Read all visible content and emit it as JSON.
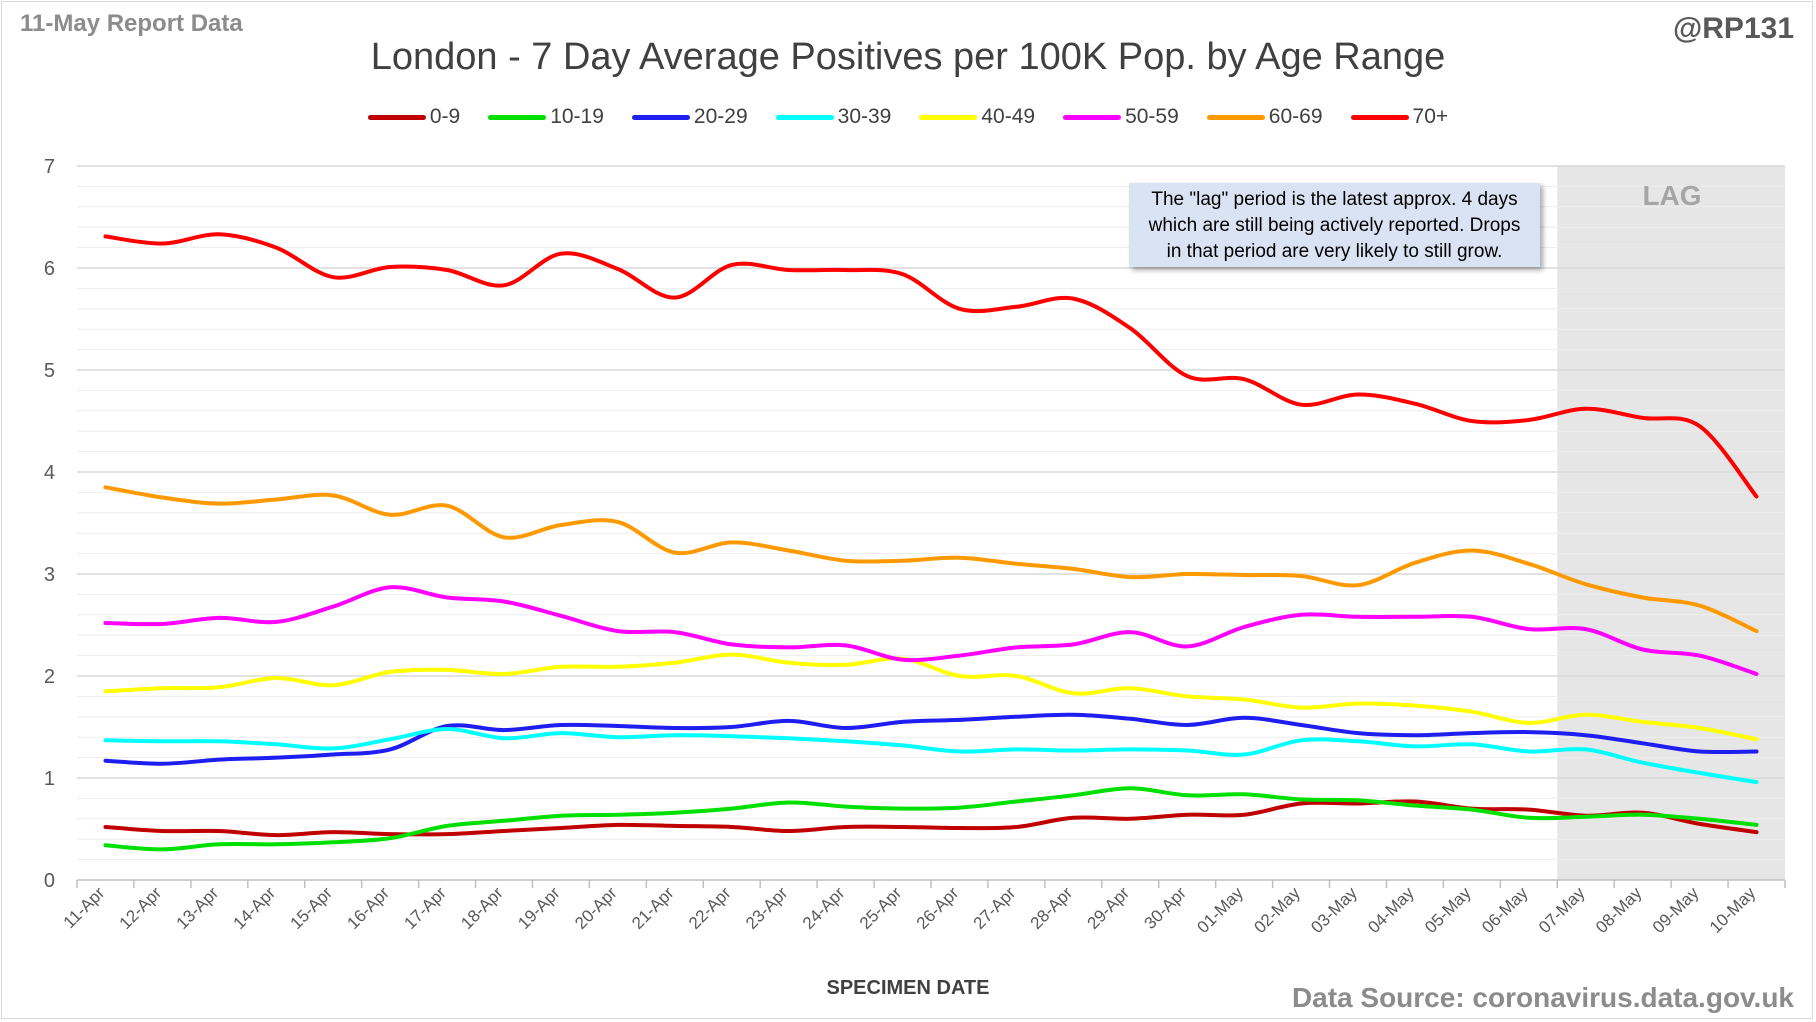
{
  "header": {
    "report_date": "11-May Report Data",
    "handle": "@RP131",
    "source": "Data Source: coronavirus.data.gov.uk"
  },
  "chart_data": {
    "type": "line",
    "title": "London - 7 Day Average Positives per 100K Pop. by Age Range",
    "xlabel": "SPECIMEN DATE",
    "ylabel": "",
    "ylim": [
      0,
      7
    ],
    "yticks": [
      0,
      1,
      2,
      3,
      4,
      5,
      6,
      7
    ],
    "grid": true,
    "legend": "top",
    "categories": [
      "11-Apr",
      "12-Apr",
      "13-Apr",
      "14-Apr",
      "15-Apr",
      "16-Apr",
      "17-Apr",
      "18-Apr",
      "19-Apr",
      "20-Apr",
      "21-Apr",
      "22-Apr",
      "23-Apr",
      "24-Apr",
      "25-Apr",
      "26-Apr",
      "27-Apr",
      "28-Apr",
      "29-Apr",
      "30-Apr",
      "01-May",
      "02-May",
      "03-May",
      "04-May",
      "05-May",
      "06-May",
      "07-May",
      "08-May",
      "09-May",
      "10-May"
    ],
    "series": [
      {
        "name": "0-9",
        "color": "#c00000",
        "values": [
          0.52,
          0.48,
          0.48,
          0.44,
          0.47,
          0.45,
          0.45,
          0.48,
          0.51,
          0.54,
          0.53,
          0.52,
          0.48,
          0.52,
          0.52,
          0.51,
          0.52,
          0.61,
          0.6,
          0.64,
          0.64,
          0.75,
          0.75,
          0.77,
          0.7,
          0.69,
          0.63,
          0.66,
          0.55,
          0.47
        ]
      },
      {
        "name": "10-19",
        "color": "#00e000",
        "values": [
          0.34,
          0.3,
          0.35,
          0.35,
          0.37,
          0.41,
          0.53,
          0.58,
          0.63,
          0.64,
          0.66,
          0.7,
          0.76,
          0.72,
          0.7,
          0.71,
          0.77,
          0.83,
          0.9,
          0.83,
          0.84,
          0.79,
          0.78,
          0.73,
          0.69,
          0.61,
          0.62,
          0.64,
          0.6,
          0.54
        ]
      },
      {
        "name": "20-29",
        "color": "#1e1ef0",
        "values": [
          1.17,
          1.14,
          1.18,
          1.2,
          1.23,
          1.28,
          1.51,
          1.47,
          1.52,
          1.51,
          1.49,
          1.5,
          1.56,
          1.49,
          1.55,
          1.57,
          1.6,
          1.62,
          1.58,
          1.52,
          1.59,
          1.52,
          1.44,
          1.42,
          1.44,
          1.45,
          1.42,
          1.34,
          1.26,
          1.26
        ]
      },
      {
        "name": "30-39",
        "color": "#00ffff",
        "values": [
          1.37,
          1.36,
          1.36,
          1.33,
          1.29,
          1.38,
          1.48,
          1.39,
          1.44,
          1.4,
          1.42,
          1.41,
          1.39,
          1.36,
          1.32,
          1.26,
          1.28,
          1.27,
          1.28,
          1.27,
          1.23,
          1.37,
          1.36,
          1.31,
          1.33,
          1.26,
          1.28,
          1.15,
          1.05,
          0.96
        ]
      },
      {
        "name": "40-49",
        "color": "#ffff00",
        "values": [
          1.85,
          1.88,
          1.89,
          1.98,
          1.91,
          2.04,
          2.06,
          2.02,
          2.09,
          2.09,
          2.13,
          2.21,
          2.13,
          2.11,
          2.17,
          2.0,
          2.0,
          1.83,
          1.88,
          1.8,
          1.77,
          1.69,
          1.73,
          1.71,
          1.65,
          1.54,
          1.62,
          1.55,
          1.49,
          1.38
        ]
      },
      {
        "name": "50-59",
        "color": "#ff00ff",
        "values": [
          2.52,
          2.51,
          2.57,
          2.53,
          2.68,
          2.87,
          2.77,
          2.73,
          2.59,
          2.44,
          2.43,
          2.31,
          2.28,
          2.3,
          2.16,
          2.2,
          2.28,
          2.31,
          2.43,
          2.29,
          2.48,
          2.6,
          2.58,
          2.58,
          2.58,
          2.46,
          2.46,
          2.26,
          2.2,
          2.02
        ]
      },
      {
        "name": "60-69",
        "color": "#ff9900",
        "values": [
          3.85,
          3.75,
          3.69,
          3.73,
          3.77,
          3.58,
          3.67,
          3.36,
          3.48,
          3.51,
          3.21,
          3.31,
          3.23,
          3.13,
          3.13,
          3.16,
          3.1,
          3.05,
          2.97,
          3.0,
          2.99,
          2.98,
          2.89,
          3.11,
          3.23,
          3.1,
          2.9,
          2.77,
          2.69,
          2.44
        ]
      },
      {
        "name": "70+",
        "color": "#ff0000",
        "values": [
          6.31,
          6.24,
          6.33,
          6.2,
          5.91,
          6.01,
          5.98,
          5.83,
          6.14,
          5.99,
          5.71,
          6.03,
          5.98,
          5.98,
          5.94,
          5.6,
          5.62,
          5.7,
          5.41,
          4.94,
          4.91,
          4.66,
          4.76,
          4.67,
          4.5,
          4.51,
          4.62,
          4.53,
          4.45,
          3.76
        ]
      }
    ],
    "lag_region": {
      "start": "07-May",
      "end": "10-May",
      "label": "LAG",
      "color": "#e6e6e6"
    },
    "annotation": [
      "The \"lag\" period is the latest approx. 4 days",
      "which are still being actively reported.  Drops",
      "in that period are very likely to still grow."
    ],
    "colors": {
      "grid": "#d9d9d9",
      "axis": "#bfbfbf",
      "tick_text": "#595959"
    }
  }
}
